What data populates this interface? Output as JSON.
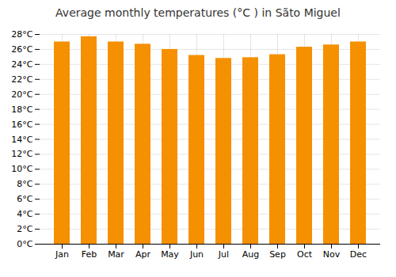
{
  "chart_data": {
    "type": "bar",
    "title": "Average monthly temperatures (°C ) in Sãto Miguel",
    "categories": [
      "Jan",
      "Feb",
      "Mar",
      "Apr",
      "May",
      "Jun",
      "Jul",
      "Aug",
      "Sep",
      "Oct",
      "Nov",
      "Dec"
    ],
    "values": [
      27.0,
      27.7,
      27.0,
      26.7,
      26.0,
      25.2,
      24.8,
      24.9,
      25.3,
      26.3,
      26.6,
      27.0
    ],
    "color": "#F59000",
    "ylim": [
      0,
      28
    ],
    "yticks": [
      {
        "value": 0,
        "label": "0°C"
      },
      {
        "value": 2,
        "label": "2°C"
      },
      {
        "value": 4,
        "label": "4°C"
      },
      {
        "value": 6,
        "label": "6°C"
      },
      {
        "value": 8,
        "label": "8°C"
      },
      {
        "value": 10,
        "label": "10°C"
      },
      {
        "value": 12,
        "label": "12°C"
      },
      {
        "value": 14,
        "label": "14°C"
      },
      {
        "value": 16,
        "label": "16°C"
      },
      {
        "value": 18,
        "label": "18°C"
      },
      {
        "value": 20,
        "label": "20°C"
      },
      {
        "value": 22,
        "label": "22°C"
      },
      {
        "value": 24,
        "label": "24°C"
      },
      {
        "value": 26,
        "label": "26°C"
      },
      {
        "value": 28,
        "label": "28°C"
      }
    ],
    "grid": true
  }
}
